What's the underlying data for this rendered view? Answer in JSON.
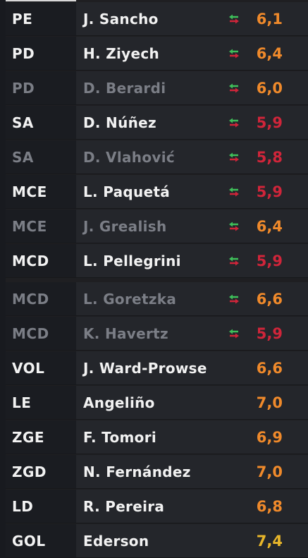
{
  "colors": {
    "orange": "#f08a2b",
    "red": "#d0253a",
    "gold": "#e8b62a"
  },
  "players": [
    {
      "pos": "PE",
      "name": "J. Sancho",
      "rating": "6,1",
      "rating_color": "#f08a2b",
      "dim": false,
      "sub": true
    },
    {
      "pos": "PD",
      "name": "H. Ziyech",
      "rating": "6,4",
      "rating_color": "#f08a2b",
      "dim": false,
      "sub": true
    },
    {
      "pos": "PD",
      "name": "D. Berardi",
      "rating": "6,0",
      "rating_color": "#f08a2b",
      "dim": true,
      "sub": true
    },
    {
      "pos": "SA",
      "name": "D. Núñez",
      "rating": "5,9",
      "rating_color": "#d0253a",
      "dim": false,
      "sub": true
    },
    {
      "pos": "SA",
      "name": "D. Vlahović",
      "rating": "5,8",
      "rating_color": "#d0253a",
      "dim": true,
      "sub": true
    },
    {
      "pos": "MCE",
      "name": "L. Paquetá",
      "rating": "5,9",
      "rating_color": "#d0253a",
      "dim": false,
      "sub": true
    },
    {
      "pos": "MCE",
      "name": "J. Grealish",
      "rating": "6,4",
      "rating_color": "#f08a2b",
      "dim": true,
      "sub": true
    },
    {
      "pos": "MCD",
      "name": "L. Pellegrini",
      "rating": "5,9",
      "rating_color": "#d0253a",
      "dim": false,
      "sub": true
    },
    {
      "pos": "MCD",
      "name": "L. Goretzka",
      "rating": "6,6",
      "rating_color": "#f08a2b",
      "dim": true,
      "sub": true
    },
    {
      "pos": "MCD",
      "name": "K. Havertz",
      "rating": "5,9",
      "rating_color": "#d0253a",
      "dim": true,
      "sub": true
    },
    {
      "pos": "VOL",
      "name": "J. Ward-Prowse",
      "rating": "6,6",
      "rating_color": "#f08a2b",
      "dim": false,
      "sub": false
    },
    {
      "pos": "LE",
      "name": "Angeliño",
      "rating": "7,0",
      "rating_color": "#f08a2b",
      "dim": false,
      "sub": false
    },
    {
      "pos": "ZGE",
      "name": "F. Tomori",
      "rating": "6,9",
      "rating_color": "#f08a2b",
      "dim": false,
      "sub": false
    },
    {
      "pos": "ZGD",
      "name": "N. Fernández",
      "rating": "7,0",
      "rating_color": "#f08a2b",
      "dim": false,
      "sub": false
    },
    {
      "pos": "LD",
      "name": "R. Pereira",
      "rating": "6,8",
      "rating_color": "#f08a2b",
      "dim": false,
      "sub": false
    },
    {
      "pos": "GOL",
      "name": "Ederson",
      "rating": "7,4",
      "rating_color": "#e8b62a",
      "dim": false,
      "sub": false
    }
  ]
}
